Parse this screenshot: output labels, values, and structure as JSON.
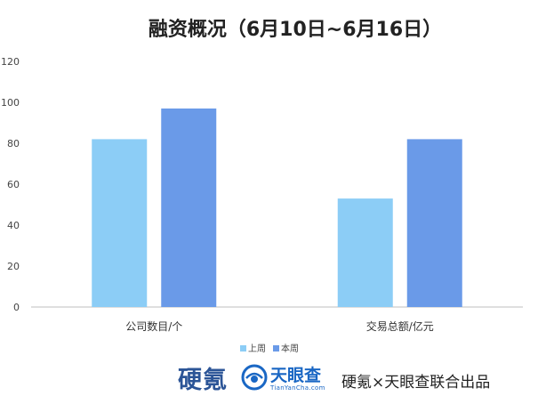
{
  "chart_data": {
    "type": "bar",
    "title": "融资概况（6月10日~6月16日）",
    "categories": [
      "公司数目/个",
      "交易总额/亿元"
    ],
    "series": [
      {
        "name": "上周",
        "color": "#8ccdf6",
        "values": [
          82,
          53
        ]
      },
      {
        "name": "本周",
        "color": "#6a9ae8",
        "values": [
          97,
          82
        ]
      }
    ],
    "ylim": [
      0,
      120
    ],
    "yticks": [
      0,
      20,
      40,
      60,
      80,
      100,
      120
    ],
    "grid": false,
    "legend": "bottom",
    "xlabel": "",
    "ylabel": ""
  },
  "footer": {
    "brand_hardkr": "硬氪",
    "brand_tianyancha": "天眼查",
    "brand_tianyancha_url": "TianYanCha.com",
    "credit": "硬氪×天眼查联合出品"
  }
}
